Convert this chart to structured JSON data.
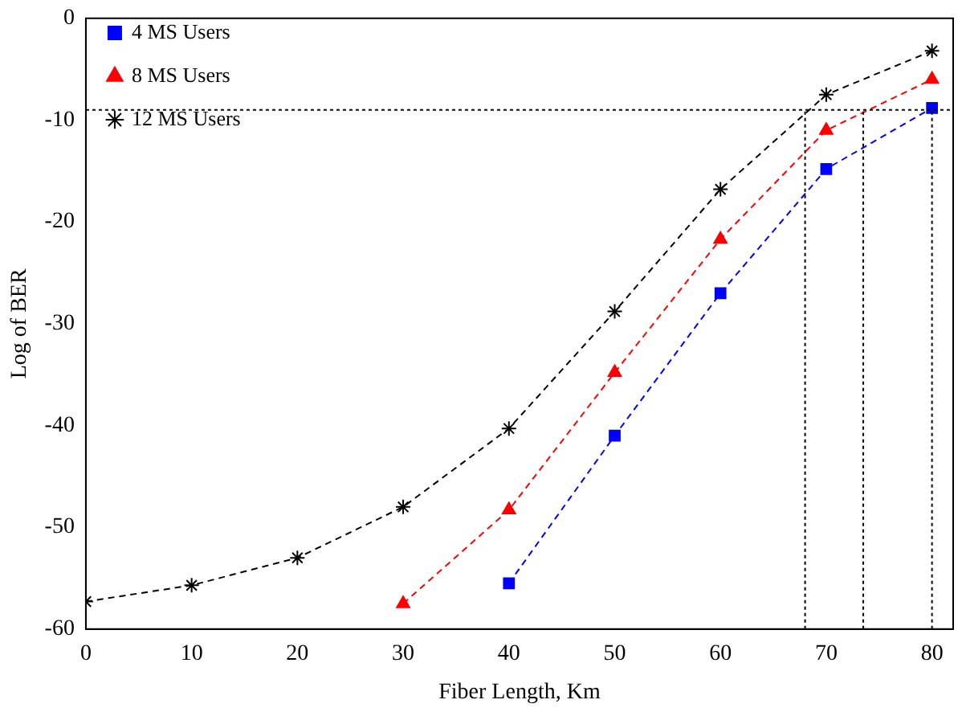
{
  "chart_data": {
    "type": "line",
    "xlabel": "Fiber Length, Km",
    "ylabel": "Log of BER",
    "xlim": [
      0,
      82
    ],
    "xticks": [
      0,
      10,
      20,
      30,
      40,
      50,
      60,
      70,
      80
    ],
    "ylim": [
      -60,
      0
    ],
    "yticks": [
      -60,
      -50,
      -40,
      -30,
      -20,
      -10,
      0
    ],
    "grid": false,
    "legend": "top left",
    "line_style": "dashed",
    "series": [
      {
        "name": "4 MS Users",
        "color": "#0000ff",
        "marker": "square",
        "x": [
          40,
          50,
          60,
          70,
          80
        ],
        "values": [
          -55.5,
          -41,
          -27,
          -14.8,
          -8.8
        ]
      },
      {
        "name": "8 MS Users",
        "color": "#ff0000",
        "marker": "triangle",
        "x": [
          30,
          40,
          50,
          60,
          70,
          80
        ],
        "values": [
          -57.5,
          -48.3,
          -34.8,
          -21.7,
          -11,
          -6
        ]
      },
      {
        "name": "12 MS Users",
        "color": "#000000",
        "marker": "cross",
        "x": [
          0,
          10,
          20,
          30,
          40,
          50,
          60,
          70,
          80
        ],
        "values": [
          -57.3,
          -55.7,
          -53,
          -48,
          -40.3,
          -28.8,
          -16.8,
          -7.5,
          -3.2
        ]
      }
    ],
    "ref_lines": [
      {
        "axis": "y",
        "value": -9,
        "color": "#000000",
        "line_style": "dotted"
      },
      {
        "axis": "x",
        "value": 68,
        "color": "#000000",
        "line_style": "dotted"
      },
      {
        "axis": "x",
        "value": 73.5,
        "color": "#000000",
        "line_style": "dotted"
      },
      {
        "axis": "x",
        "value": 80,
        "color": "#000000",
        "line_style": "dotted"
      }
    ]
  }
}
